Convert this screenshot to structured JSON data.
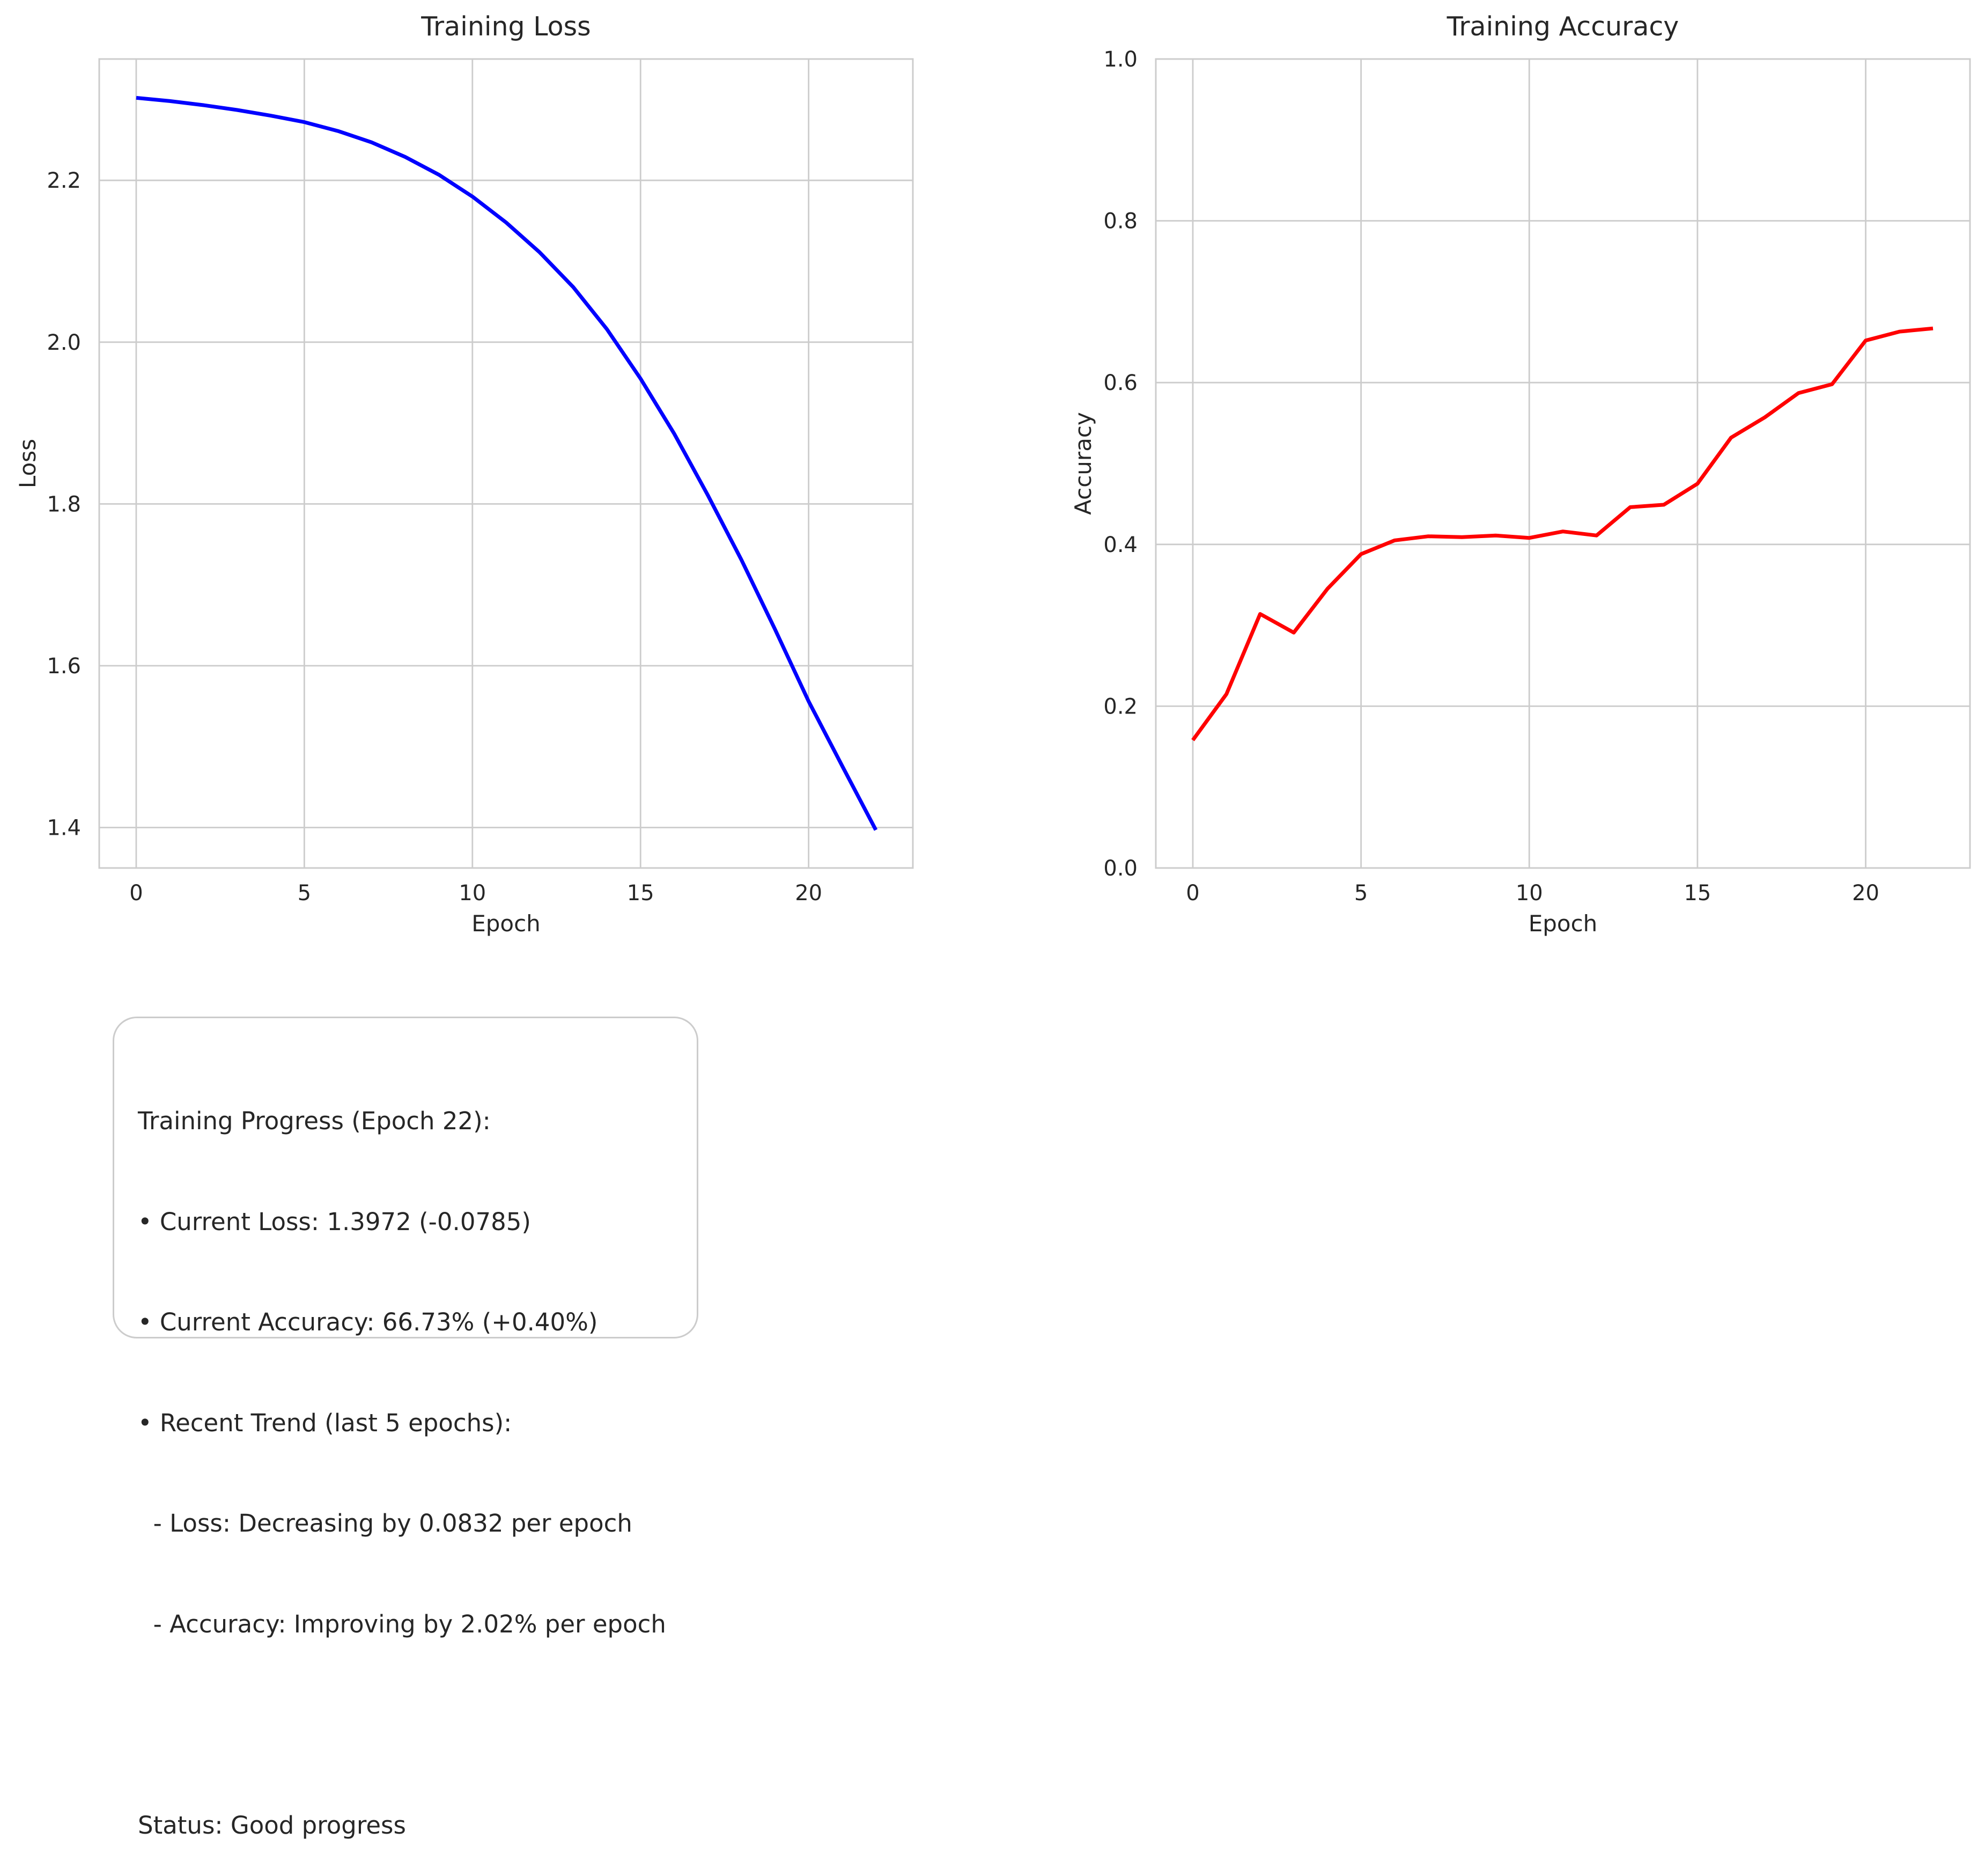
{
  "chart_data": [
    {
      "type": "line",
      "title": "Training Loss",
      "xlabel": "Epoch",
      "ylabel": "Loss",
      "xlim": [
        -1.1,
        23.1
      ],
      "ylim": [
        1.35,
        2.35
      ],
      "xticks": [
        0,
        5,
        10,
        15,
        20
      ],
      "yticks": [
        1.4,
        1.6,
        1.8,
        2.0,
        2.2
      ],
      "ytick_labels": [
        "1.4",
        "1.6",
        "1.8",
        "2.0",
        "2.2"
      ],
      "grid": true,
      "color": "#0000ff",
      "x": [
        0,
        1,
        2,
        3,
        4,
        5,
        6,
        7,
        8,
        9,
        10,
        11,
        12,
        13,
        14,
        15,
        16,
        17,
        18,
        19,
        20,
        21,
        22
      ],
      "values": [
        2.302,
        2.298,
        2.293,
        2.287,
        2.28,
        2.272,
        2.261,
        2.247,
        2.229,
        2.207,
        2.18,
        2.148,
        2.111,
        2.068,
        2.016,
        1.955,
        1.887,
        1.811,
        1.731,
        1.645,
        1.556,
        1.476,
        1.397
      ]
    },
    {
      "type": "line",
      "title": "Training Accuracy",
      "xlabel": "Epoch",
      "ylabel": "Accuracy",
      "xlim": [
        -1.1,
        23.1
      ],
      "ylim": [
        0.0,
        1.0
      ],
      "xticks": [
        0,
        5,
        10,
        15,
        20
      ],
      "yticks": [
        0.0,
        0.2,
        0.4,
        0.6,
        0.8,
        1.0
      ],
      "ytick_labels": [
        "0.0",
        "0.2",
        "0.4",
        "0.6",
        "0.8",
        "1.0"
      ],
      "grid": true,
      "color": "#ff0000",
      "x": [
        0,
        1,
        2,
        3,
        4,
        5,
        6,
        7,
        8,
        9,
        10,
        11,
        12,
        13,
        14,
        15,
        16,
        17,
        18,
        19,
        20,
        21,
        22
      ],
      "values": [
        0.158,
        0.215,
        0.314,
        0.291,
        0.345,
        0.388,
        0.405,
        0.41,
        0.409,
        0.411,
        0.408,
        0.416,
        0.411,
        0.446,
        0.449,
        0.475,
        0.532,
        0.557,
        0.587,
        0.598,
        0.652,
        0.663,
        0.667
      ]
    }
  ],
  "info_box": {
    "lines": [
      "Training Progress (Epoch 22):",
      "• Current Loss: 1.3972 (-0.0785)",
      "• Current Accuracy: 66.73% (+0.40%)",
      "• Recent Trend (last 5 epochs):",
      "  - Loss: Decreasing by 0.0832 per epoch",
      "  - Accuracy: Improving by 2.02% per epoch",
      "",
      "Status: Good progress"
    ]
  }
}
